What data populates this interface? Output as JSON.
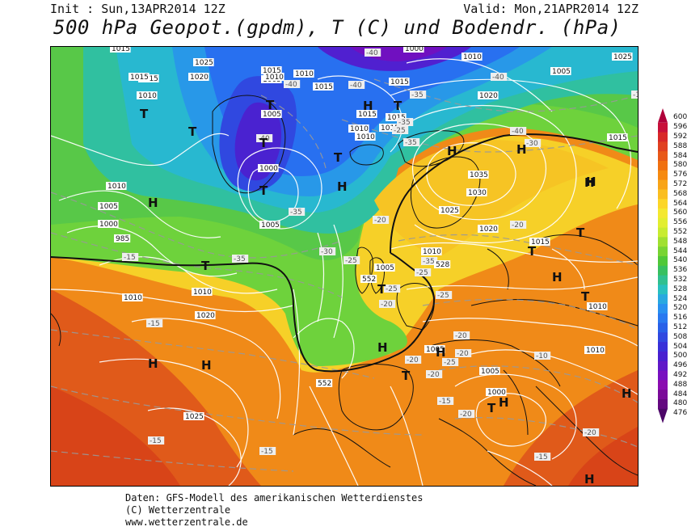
{
  "header": {
    "init": "Init : Sun,13APR2014 12Z",
    "valid": "Valid: Mon,21APR2014 12Z",
    "title": "500 hPa Geopot.(gpdm), T (C) und Bodendr. (hPa)"
  },
  "legend": {
    "values": [
      "600",
      "596",
      "592",
      "588",
      "584",
      "580",
      "576",
      "572",
      "568",
      "564",
      "560",
      "556",
      "552",
      "548",
      "544",
      "540",
      "536",
      "532",
      "528",
      "524",
      "520",
      "516",
      "512",
      "508",
      "504",
      "500",
      "496",
      "492",
      "488",
      "484",
      "480",
      "476"
    ],
    "colors": [
      "#b0003a",
      "#c8103a",
      "#d82828",
      "#e04020",
      "#e85818",
      "#f07010",
      "#f68a10",
      "#f8a418",
      "#fabe20",
      "#fcd628",
      "#f4e830",
      "#e2ee30",
      "#c8ec30",
      "#a0e030",
      "#78d432",
      "#50c838",
      "#38c060",
      "#30c090",
      "#28c0c0",
      "#28a8e0",
      "#2890f0",
      "#2878f0",
      "#2860e8",
      "#3048e0",
      "#3830d8",
      "#4820d0",
      "#6018c8",
      "#7810c0",
      "#8a0cb0",
      "#7a0a98",
      "#640880",
      "#4c0668"
    ]
  },
  "map": {
    "pressure_labels": [
      "1015",
      "1025",
      "1020",
      "1015",
      "1010",
      "1005",
      "1010",
      "1020",
      "1015",
      "1005",
      "1010",
      "1010",
      "1000",
      "1010",
      "1015",
      "1035",
      "1030",
      "1025",
      "1020",
      "1015",
      "1005",
      "1010",
      "1010",
      "1020",
      "1010",
      "985",
      "1000",
      "1005",
      "1010",
      "1015",
      "1005",
      "1015",
      "1025",
      "1015",
      "1010",
      "1015",
      "1000",
      "1010",
      "1020",
      "1025",
      "1005",
      "1005",
      "1000",
      "1005",
      "1010",
      "1015",
      "1015"
    ],
    "temperature_labels": [
      "-40",
      "-40",
      "-40",
      "-40",
      "-35",
      "-40",
      "-35",
      "-40",
      "-35",
      "-25",
      "-30",
      "-35",
      "-20",
      "-20",
      "-25",
      "-30",
      "-35",
      "-35",
      "-25",
      "-25",
      "-20",
      "-15",
      "-15",
      "-20",
      "-20",
      "-25",
      "-15",
      "-20",
      "-15",
      "-20",
      "-10",
      "-20",
      "-15",
      "-10",
      "-15",
      "-20",
      "-25"
    ],
    "geopotential_labels": [
      "552",
      "552",
      "528"
    ],
    "highs": [
      "H",
      "H",
      "H",
      "H",
      "H",
      "H",
      "H",
      "H",
      "H",
      "H",
      "H",
      "H",
      "H",
      "H",
      "H"
    ],
    "lows": [
      "T",
      "T",
      "T",
      "T",
      "T",
      "T",
      "T",
      "T",
      "T",
      "T",
      "T",
      "T",
      "T",
      "T"
    ]
  },
  "credits": {
    "line1": "Daten: GFS-Modell des amerikanischen Wetterdienstes",
    "line2": "(C) Wetterzentrale",
    "line3": "www.wetterzentrale.de"
  },
  "colors": {
    "orange": "#f08a18",
    "red": "#e04a1a",
    "yellow": "#f8d828",
    "green": "#58cc40",
    "cyan": "#28c0d8",
    "blue": "#2878f0",
    "purple": "#6018c8"
  }
}
